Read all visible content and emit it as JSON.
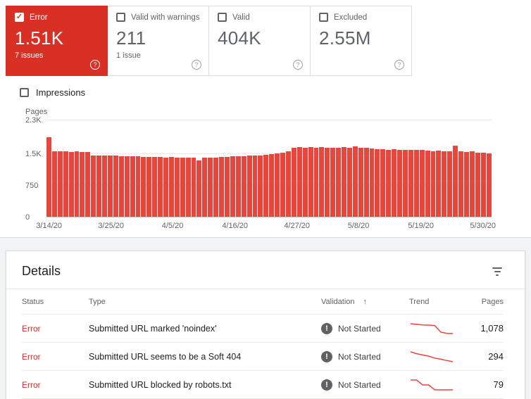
{
  "cards": [
    {
      "label": "Error",
      "value": "1.51K",
      "sub": "7 issues"
    },
    {
      "label": "Valid with warnings",
      "value": "211",
      "sub": "1 issue"
    },
    {
      "label": "Valid",
      "value": "404K",
      "sub": ""
    },
    {
      "label": "Excluded",
      "value": "2.55M",
      "sub": ""
    }
  ],
  "impressions_label": "Impressions",
  "chart_data": {
    "type": "bar",
    "title": "",
    "ylabel": "Pages",
    "ylim": [
      0,
      2300
    ],
    "y_tick_values": [
      0,
      750,
      1500,
      2300
    ],
    "y_tick_labels": [
      "0",
      "750",
      "1.5K",
      "2.3K"
    ],
    "x_tick_labels": [
      "3/14/20",
      "3/25/20",
      "4/5/20",
      "4/16/20",
      "4/27/20",
      "5/8/20",
      "5/19/20",
      "5/30/20"
    ],
    "x_tick_days": [
      0,
      11,
      22,
      33,
      44,
      55,
      66,
      77
    ],
    "bar_color": "#e8453c",
    "values": [
      1900,
      1570,
      1560,
      1565,
      1550,
      1560,
      1555,
      1545,
      1470,
      1465,
      1470,
      1465,
      1460,
      1450,
      1455,
      1450,
      1445,
      1440,
      1435,
      1440,
      1430,
      1425,
      1430,
      1420,
      1410,
      1415,
      1420,
      1350,
      1420,
      1425,
      1420,
      1430,
      1435,
      1450,
      1455,
      1450,
      1460,
      1465,
      1475,
      1485,
      1495,
      1515,
      1540,
      1560,
      1650,
      1660,
      1655,
      1660,
      1650,
      1660,
      1650,
      1645,
      1650,
      1660,
      1650,
      1680,
      1655,
      1645,
      1635,
      1625,
      1615,
      1605,
      1610,
      1600,
      1595,
      1600,
      1600,
      1595,
      1585,
      1575,
      1580,
      1570,
      1560,
      1700,
      1560,
      1550,
      1560,
      1540,
      1530,
      1520
    ]
  },
  "details": {
    "title": "Details",
    "columns": {
      "status": "Status",
      "type": "Type",
      "validation": "Validation",
      "trend": "Trend",
      "pages": "Pages"
    },
    "sort_arrow": "↑",
    "rows": [
      {
        "status": "Error",
        "type": "Submitted URL marked 'noindex'",
        "validation": "Not Started",
        "trend": [
          1160,
          1155,
          1150,
          1148,
          1145,
          1090,
          1080,
          1078
        ],
        "pages": "1,078"
      },
      {
        "status": "Error",
        "type": "Submitted URL seems to be a Soft 404",
        "validation": "Not Started",
        "trend": [
          310,
          307,
          305,
          303,
          300,
          298,
          296,
          294
        ],
        "pages": "294"
      },
      {
        "status": "Error",
        "type": "Submitted URL blocked by robots.txt",
        "validation": "Not Started",
        "trend": [
          81,
          81,
          80,
          80,
          79,
          79,
          79,
          79
        ],
        "pages": "79"
      }
    ]
  },
  "colors": {
    "error_red": "#d93025",
    "bar_red": "#e8453c",
    "text_gray": "#5f6368"
  }
}
